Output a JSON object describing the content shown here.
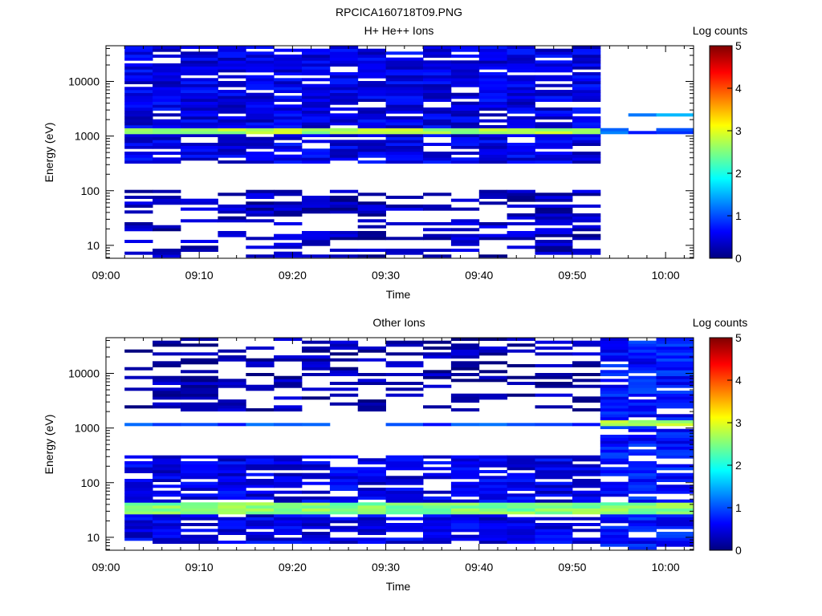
{
  "figure_title": "RPCICA160718T09.PNG",
  "colors": {
    "colormap": [
      "#00007f",
      "#0000ff",
      "#007fff",
      "#00ffff",
      "#7fff7f",
      "#ffff00",
      "#ff7f00",
      "#ff0000",
      "#7f0000"
    ],
    "background": "#ffffff",
    "axis": "#000000"
  },
  "chart_data": [
    {
      "type": "heatmap",
      "title": "H+ He++ Ions",
      "xlabel": "Time",
      "ylabel": "Energy (eV)",
      "x_ticks": [
        "09:00",
        "09:10",
        "09:20",
        "09:30",
        "09:40",
        "09:50",
        "10:00"
      ],
      "y_scale": "log",
      "y_ticks": [
        "10",
        "100",
        "1000",
        "10000"
      ],
      "ylim": [
        5.8,
        45000
      ],
      "xlim": [
        "09:00",
        "10:03"
      ],
      "time_bin_starts": [
        "09:02",
        "09:05",
        "09:08",
        "09:12",
        "09:15",
        "09:18",
        "09:21",
        "09:24",
        "09:27",
        "09:30",
        "09:34",
        "09:37",
        "09:40",
        "09:43",
        "09:46",
        "09:50",
        "09:53",
        "09:56",
        "09:59"
      ],
      "colorbar": {
        "label": "Log counts",
        "range": [
          0,
          5
        ],
        "ticks": [
          "0",
          "1",
          "2",
          "3",
          "4",
          "5"
        ]
      },
      "features": [
        {
          "name": "dense band",
          "energy_range_eV": [
            300,
            45000
          ],
          "time_range": [
            "09:02",
            "09:53"
          ],
          "log_counts": 0.5
        },
        {
          "name": "peak band",
          "energy_range_eV": [
            1050,
            1350
          ],
          "time_range": [
            "09:02",
            "09:53"
          ],
          "log_counts": 2.7
        },
        {
          "name": "low-energy patches",
          "energy_range_eV": [
            6,
            100
          ],
          "time_range": [
            "09:02",
            "09:53"
          ],
          "log_counts": 0.3
        },
        {
          "name": "weak band after 09:53",
          "energy_range_eV": [
            1050,
            1350
          ],
          "time_range": [
            "09:53",
            "10:03"
          ],
          "log_counts": 1.0
        },
        {
          "name": "line near 2500 eV",
          "energy_range_eV": [
            2350,
            2650
          ],
          "time_range": [
            "09:56",
            "10:03"
          ],
          "log_counts": 1.3
        }
      ]
    },
    {
      "type": "heatmap",
      "title": "Other Ions",
      "xlabel": "Time",
      "ylabel": "Energy (eV)",
      "x_ticks": [
        "09:00",
        "09:10",
        "09:20",
        "09:30",
        "09:40",
        "09:50",
        "10:00"
      ],
      "y_scale": "log",
      "y_ticks": [
        "10",
        "100",
        "1000",
        "10000"
      ],
      "ylim": [
        5.8,
        45000
      ],
      "xlim": [
        "09:00",
        "10:03"
      ],
      "time_bin_starts": [
        "09:02",
        "09:05",
        "09:08",
        "09:12",
        "09:15",
        "09:18",
        "09:21",
        "09:24",
        "09:27",
        "09:30",
        "09:34",
        "09:37",
        "09:40",
        "09:43",
        "09:46",
        "09:50",
        "09:53",
        "09:56",
        "09:59"
      ],
      "colorbar": {
        "label": "Log counts",
        "range": [
          0,
          5
        ],
        "ticks": [
          "0",
          "1",
          "2",
          "3",
          "4",
          "5"
        ]
      },
      "features": [
        {
          "name": "sparse high-energy lines",
          "energy_range_eV": [
            2000,
            45000
          ],
          "time_range": [
            "09:02",
            "09:53"
          ],
          "log_counts": 0.2
        },
        {
          "name": "band near 1200 eV",
          "energy_range_eV": [
            1100,
            1300
          ],
          "time_range": [
            "09:02",
            "09:53"
          ],
          "log_counts": 0.9
        },
        {
          "name": "dense low-energy region",
          "energy_range_eV": [
            8,
            300
          ],
          "time_range": [
            "09:02",
            "09:53"
          ],
          "log_counts": 0.5
        },
        {
          "name": "peak band near 35 eV",
          "energy_range_eV": [
            28,
            42
          ],
          "time_range": [
            "09:02",
            "10:03"
          ],
          "log_counts": 2.5
        },
        {
          "name": "dense region after 09:53",
          "energy_range_eV": [
            6,
            45000
          ],
          "time_range": [
            "09:53",
            "10:03"
          ],
          "log_counts": 0.7
        },
        {
          "name": "band near 1200 eV after 09:53",
          "energy_range_eV": [
            1050,
            1350
          ],
          "time_range": [
            "09:53",
            "10:03"
          ],
          "log_counts": 2.7
        }
      ]
    }
  ]
}
